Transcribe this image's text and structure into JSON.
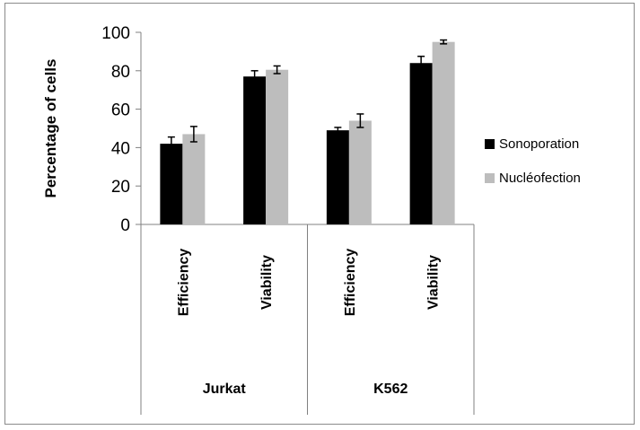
{
  "chart_data": {
    "type": "bar",
    "title": "",
    "ylabel": "Percentage of cells",
    "ylim": [
      0,
      100
    ],
    "yticks": [
      0,
      20,
      40,
      60,
      80,
      100
    ],
    "groups": [
      {
        "label": "Jurkat",
        "categories": [
          "Efficiency",
          "Viability"
        ]
      },
      {
        "label": "K562",
        "categories": [
          "Efficiency",
          "Viability"
        ]
      }
    ],
    "categories": [
      "Efficiency",
      "Viability",
      "Efficiency",
      "Viability"
    ],
    "series": [
      {
        "name": "Sonoporation",
        "color": "#000000",
        "values": [
          42,
          77,
          49,
          84
        ],
        "errors": [
          3.5,
          3,
          1.5,
          3.5
        ]
      },
      {
        "name": "Nucléofection",
        "color": "#bdbdbd",
        "values": [
          47,
          80.5,
          54,
          95
        ],
        "errors": [
          4,
          2,
          3.5,
          1
        ]
      }
    ],
    "grid": false,
    "legend_position": "right"
  }
}
